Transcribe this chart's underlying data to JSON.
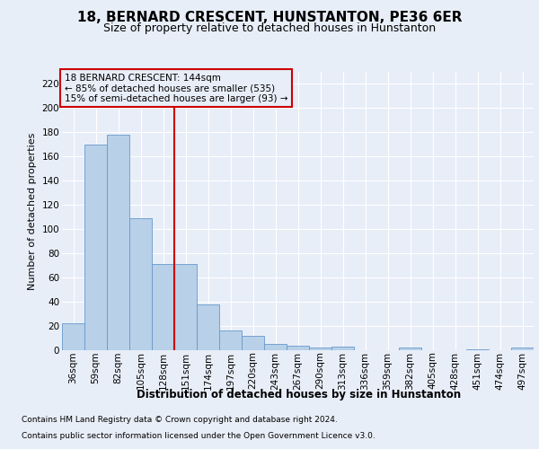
{
  "title": "18, BERNARD CRESCENT, HUNSTANTON, PE36 6ER",
  "subtitle": "Size of property relative to detached houses in Hunstanton",
  "xlabel": "Distribution of detached houses by size in Hunstanton",
  "ylabel": "Number of detached properties",
  "categories": [
    "36sqm",
    "59sqm",
    "82sqm",
    "105sqm",
    "128sqm",
    "151sqm",
    "174sqm",
    "197sqm",
    "220sqm",
    "243sqm",
    "267sqm",
    "290sqm",
    "313sqm",
    "336sqm",
    "359sqm",
    "382sqm",
    "405sqm",
    "428sqm",
    "451sqm",
    "474sqm",
    "497sqm"
  ],
  "values": [
    22,
    170,
    178,
    109,
    71,
    71,
    38,
    16,
    12,
    5,
    4,
    2,
    3,
    0,
    0,
    2,
    0,
    0,
    1,
    0,
    2
  ],
  "bar_color": "#b8d0e8",
  "bar_edge_color": "#6699cc",
  "vline_color": "#cc0000",
  "vline_index": 4.5,
  "annotation_title": "18 BERNARD CRESCENT: 144sqm",
  "annotation_line1": "← 85% of detached houses are smaller (535)",
  "annotation_line2": "15% of semi-detached houses are larger (93) →",
  "annotation_box_edgecolor": "#cc0000",
  "ylim_max": 230,
  "ytick_step": 20,
  "bg_color": "#e8eef8",
  "grid_color": "#ffffff",
  "title_fontsize": 11,
  "subtitle_fontsize": 9,
  "ylabel_fontsize": 8,
  "xlabel_fontsize": 8.5,
  "tick_fontsize": 7.5,
  "footer1": "Contains HM Land Registry data © Crown copyright and database right 2024.",
  "footer2": "Contains public sector information licensed under the Open Government Licence v3.0.",
  "footer_fontsize": 6.5
}
